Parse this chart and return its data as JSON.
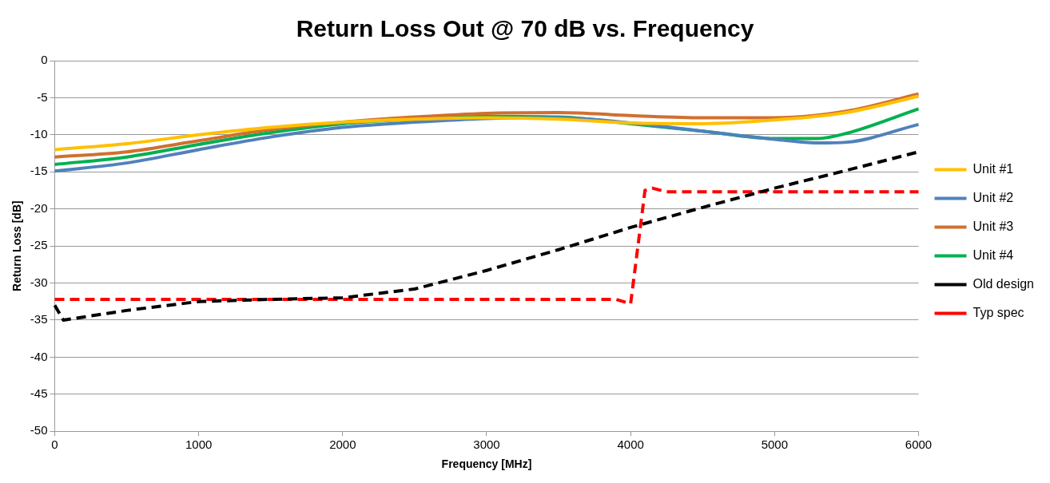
{
  "chart_data": {
    "type": "line",
    "title": "Return Loss Out @ 70 dB vs. Frequency",
    "xlabel": "Frequency [MHz]",
    "ylabel": "Return Loss [dB]",
    "xlim": [
      0,
      6000
    ],
    "xticks": [
      0,
      1000,
      2000,
      3000,
      4000,
      5000,
      6000
    ],
    "ylim": [
      -50,
      0
    ],
    "yticks": [
      -50,
      -45,
      -40,
      -35,
      -30,
      -25,
      -20,
      -15,
      -10,
      -5,
      0
    ],
    "grid": "y",
    "legend": "right",
    "marker": "none",
    "series": [
      {
        "name": "Unit #1",
        "color": "#ffc000",
        "line_style": "solid",
        "x": [
          0,
          500,
          1000,
          1500,
          2000,
          2500,
          3000,
          3500,
          4000,
          4500,
          5000,
          5500,
          6000
        ],
        "values": [
          -12.0,
          -11.2,
          -10.0,
          -9.0,
          -8.3,
          -7.9,
          -7.7,
          -7.9,
          -8.4,
          -8.5,
          -8.0,
          -7.0,
          -4.8
        ]
      },
      {
        "name": "Unit #2",
        "color": "#4f81bd",
        "line_style": "solid",
        "x": [
          0,
          500,
          1000,
          1500,
          2000,
          2500,
          3000,
          3500,
          4000,
          4500,
          5000,
          5300,
          5500,
          6000
        ],
        "values": [
          -14.9,
          -13.8,
          -12.0,
          -10.3,
          -9.0,
          -8.3,
          -7.8,
          -7.7,
          -8.4,
          -9.5,
          -10.6,
          -11.1,
          -11.0,
          -8.6
        ]
      },
      {
        "name": "Unit #3",
        "color": "#d07030",
        "line_style": "solid",
        "x": [
          0,
          500,
          1000,
          1500,
          2000,
          2500,
          3000,
          3500,
          4000,
          4500,
          5000,
          5500,
          6000
        ],
        "values": [
          -13.0,
          -12.3,
          -10.8,
          -9.3,
          -8.3,
          -7.6,
          -7.1,
          -7.0,
          -7.4,
          -7.7,
          -7.7,
          -6.8,
          -4.5
        ]
      },
      {
        "name": "Unit #4",
        "color": "#00b050",
        "line_style": "solid",
        "x": [
          0,
          500,
          1000,
          1500,
          2000,
          2500,
          3000,
          3500,
          4000,
          4500,
          5000,
          5300,
          5500,
          6000
        ],
        "values": [
          -14.0,
          -13.0,
          -11.3,
          -9.7,
          -8.5,
          -7.9,
          -7.5,
          -7.6,
          -8.5,
          -9.5,
          -10.5,
          -10.5,
          -9.8,
          -6.5
        ]
      },
      {
        "name": "Old design",
        "color": "#000000",
        "line_style": "dashed",
        "x": [
          0,
          60,
          500,
          1000,
          1500,
          2000,
          2500,
          3000,
          3500,
          4000,
          4500,
          5000,
          5500,
          6000
        ],
        "values": [
          -33.0,
          -35.0,
          -33.7,
          -32.5,
          -32.2,
          -32.0,
          -30.8,
          -28.3,
          -25.5,
          -22.5,
          -19.8,
          -17.2,
          -14.8,
          -12.3
        ]
      },
      {
        "name": "Typ spec",
        "color": "#ff0000",
        "line_style": "dashed",
        "x": [
          0,
          3900,
          4000,
          4100,
          4150,
          4250,
          6000
        ],
        "values": [
          -32.2,
          -32.2,
          -32.8,
          -17.5,
          -17.2,
          -17.7,
          -17.7
        ]
      }
    ]
  }
}
